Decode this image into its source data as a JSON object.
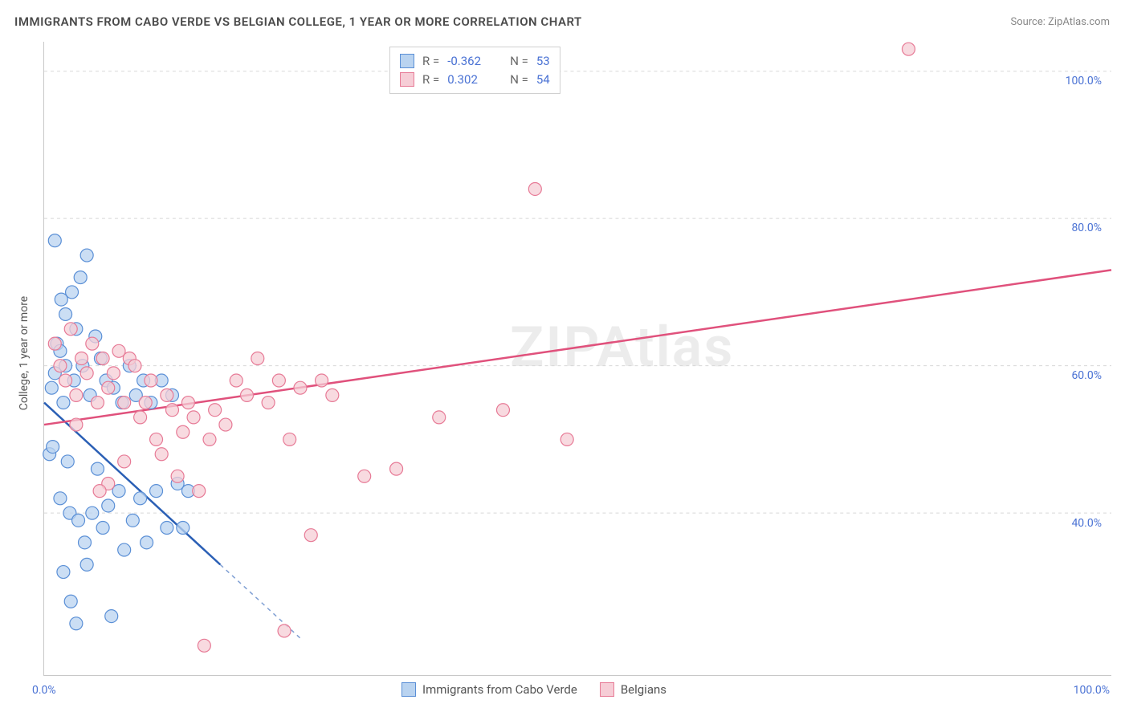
{
  "title": "IMMIGRANTS FROM CABO VERDE VS BELGIAN COLLEGE, 1 YEAR OR MORE CORRELATION CHART",
  "source_prefix": "Source: ",
  "source_name": "ZipAtlas.com",
  "ylabel": "College, 1 year or more",
  "watermark": "ZIPAtlas",
  "chart": {
    "type": "scatter",
    "background_color": "#ffffff",
    "grid_color": "#d8d8d8",
    "axis_color": "#c8c8c8",
    "label_color": "#4a72d4",
    "xlim": [
      0,
      100
    ],
    "ylim": [
      18,
      104
    ],
    "yticks": [
      40,
      60,
      80,
      100
    ],
    "ytick_labels": [
      "40.0%",
      "60.0%",
      "80.0%",
      "100.0%"
    ],
    "x_tick_left": "0.0%",
    "x_tick_right": "100.0%",
    "marker_radius": 8,
    "marker_stroke_width": 1.2,
    "series": [
      {
        "name": "Immigrants from Cabo Verde",
        "key": "cabo",
        "fill": "#b9d3f0",
        "stroke": "#5a8fd6",
        "line_color": "#2a5fb5",
        "R": "-0.362",
        "N": "53",
        "points": [
          [
            0.5,
            48
          ],
          [
            0.8,
            49
          ],
          [
            1.0,
            77
          ],
          [
            1.2,
            63
          ],
          [
            1.5,
            42
          ],
          [
            1.6,
            69
          ],
          [
            1.8,
            55
          ],
          [
            2.0,
            67
          ],
          [
            2.2,
            47
          ],
          [
            2.4,
            40
          ],
          [
            2.6,
            70
          ],
          [
            2.8,
            58
          ],
          [
            3.0,
            65
          ],
          [
            3.2,
            39
          ],
          [
            3.4,
            72
          ],
          [
            3.6,
            60
          ],
          [
            3.8,
            36
          ],
          [
            4.0,
            75
          ],
          [
            4.3,
            56
          ],
          [
            4.5,
            40
          ],
          [
            4.8,
            64
          ],
          [
            5.0,
            46
          ],
          [
            5.3,
            61
          ],
          [
            5.5,
            38
          ],
          [
            5.8,
            58
          ],
          [
            6.0,
            41
          ],
          [
            6.3,
            26
          ],
          [
            6.5,
            57
          ],
          [
            7.0,
            43
          ],
          [
            7.3,
            55
          ],
          [
            7.5,
            35
          ],
          [
            8.0,
            60
          ],
          [
            8.3,
            39
          ],
          [
            8.6,
            56
          ],
          [
            9.0,
            42
          ],
          [
            9.3,
            58
          ],
          [
            9.6,
            36
          ],
          [
            10.0,
            55
          ],
          [
            10.5,
            43
          ],
          [
            11.0,
            58
          ],
          [
            11.5,
            38
          ],
          [
            12.0,
            56
          ],
          [
            12.5,
            44
          ],
          [
            13.0,
            38
          ],
          [
            13.5,
            43
          ],
          [
            3.0,
            25
          ],
          [
            2.5,
            28
          ],
          [
            1.8,
            32
          ],
          [
            4.0,
            33
          ],
          [
            2.0,
            60
          ],
          [
            1.5,
            62
          ],
          [
            0.7,
            57
          ],
          [
            1.0,
            59
          ]
        ],
        "trend": {
          "x1": 0,
          "y1": 55,
          "x2": 16.5,
          "y2": 33,
          "extend_x2": 24,
          "extend_y2": 23
        }
      },
      {
        "name": "Belgians",
        "key": "belg",
        "fill": "#f6cdd6",
        "stroke": "#e77a96",
        "line_color": "#e0517c",
        "R": "0.302",
        "N": "54",
        "points": [
          [
            1.0,
            63
          ],
          [
            1.5,
            60
          ],
          [
            2.0,
            58
          ],
          [
            2.5,
            65
          ],
          [
            3.0,
            56
          ],
          [
            3.5,
            61
          ],
          [
            4.0,
            59
          ],
          [
            4.5,
            63
          ],
          [
            5.0,
            55
          ],
          [
            5.5,
            61
          ],
          [
            6.0,
            57
          ],
          [
            6.5,
            59
          ],
          [
            7.0,
            62
          ],
          [
            7.5,
            55
          ],
          [
            8.0,
            61
          ],
          [
            8.5,
            60
          ],
          [
            9.0,
            53
          ],
          [
            9.5,
            55
          ],
          [
            10.0,
            58
          ],
          [
            10.5,
            50
          ],
          [
            11.0,
            48
          ],
          [
            11.5,
            56
          ],
          [
            12.0,
            54
          ],
          [
            13.0,
            51
          ],
          [
            13.5,
            55
          ],
          [
            14.0,
            53
          ],
          [
            15.0,
            22
          ],
          [
            15.5,
            50
          ],
          [
            16.0,
            54
          ],
          [
            17.0,
            52
          ],
          [
            18.0,
            58
          ],
          [
            19.0,
            56
          ],
          [
            20.0,
            61
          ],
          [
            21.0,
            55
          ],
          [
            22.0,
            58
          ],
          [
            23.0,
            50
          ],
          [
            24.0,
            57
          ],
          [
            25.0,
            37
          ],
          [
            26.0,
            58
          ],
          [
            27.0,
            56
          ],
          [
            30.0,
            45
          ],
          [
            33.0,
            46
          ],
          [
            37.0,
            53
          ],
          [
            43.0,
            54
          ],
          [
            46.0,
            84
          ],
          [
            49.0,
            50
          ],
          [
            81.0,
            103
          ],
          [
            12.5,
            45
          ],
          [
            14.5,
            43
          ],
          [
            22.5,
            24
          ],
          [
            6.0,
            44
          ],
          [
            7.5,
            47
          ],
          [
            5.2,
            43
          ],
          [
            3.0,
            52
          ]
        ],
        "trend": {
          "x1": 0,
          "y1": 52,
          "x2": 100,
          "y2": 73
        }
      }
    ]
  },
  "legend_top": {
    "r_label": "R =",
    "n_label": "N ="
  },
  "legend_bottom": {
    "items": [
      "Immigrants from Cabo Verde",
      "Belgians"
    ]
  }
}
